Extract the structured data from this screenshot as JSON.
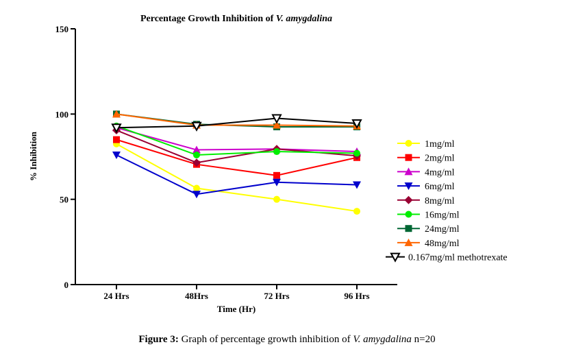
{
  "chart_data": {
    "type": "line",
    "title_prefix": "Percentage Growth Inhibition of ",
    "title_italic": "V. amygdalina",
    "xlabel": "Time (Hr)",
    "ylabel": "% Inhibition",
    "categories": [
      "24 Hrs",
      "48Hrs",
      "72 Hrs",
      "96 Hrs"
    ],
    "ylim": [
      0,
      150
    ],
    "yticks": [
      0,
      50,
      100,
      150
    ],
    "grid": false,
    "legend_position": "right",
    "series": [
      {
        "name": "1mg/ml",
        "color": "#ffff00",
        "marker": "circle",
        "values": [
          82.5,
          56.5,
          50,
          43
        ]
      },
      {
        "name": "2mg/ml",
        "color": "#ff0000",
        "marker": "square",
        "values": [
          85,
          70.5,
          64,
          74.5
        ]
      },
      {
        "name": "4mg/ml",
        "color": "#cc00cc",
        "marker": "triangle-up",
        "values": [
          92,
          79,
          79.5,
          78
        ]
      },
      {
        "name": "6mg/ml",
        "color": "#0000cc",
        "marker": "triangle-down",
        "values": [
          76,
          53,
          60,
          58.5
        ]
      },
      {
        "name": "8mg/ml",
        "color": "#990033",
        "marker": "diamond",
        "values": [
          90.5,
          71.5,
          79.5,
          75.5
        ]
      },
      {
        "name": "16mg/ml",
        "color": "#00ee00",
        "marker": "circle",
        "values": [
          93,
          76,
          78,
          77
        ]
      },
      {
        "name": "24mg/ml",
        "color": "#006633",
        "marker": "square",
        "values": [
          100,
          94,
          92.5,
          92.5
        ]
      },
      {
        "name": "48mg/ml",
        "color": "#ff6600",
        "marker": "triangle-up",
        "values": [
          100,
          93.5,
          93.5,
          93
        ]
      },
      {
        "name": "0.167mg/ml methotrexate",
        "color": "#000000",
        "marker": "triangle-down-open",
        "values": [
          92,
          93,
          97.5,
          94.5
        ]
      }
    ]
  },
  "caption": {
    "label": "Figure 3:",
    "text_before": " Graph of percentage growth inhibition of ",
    "italic": "V. amygdalina",
    "text_after": " n=20"
  }
}
